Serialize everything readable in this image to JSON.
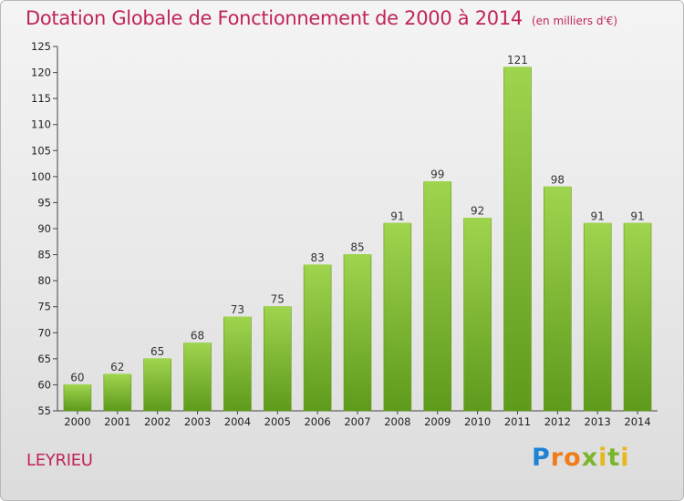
{
  "header": {
    "title": "Dotation Globale de Fonctionnement de 2000 à 2014",
    "subtitle": "(en milliers d'€)"
  },
  "footer": {
    "commune": "LEYRIEU",
    "logo": "Proxiti"
  },
  "colors": {
    "accent": "#c0245c",
    "bar_light": "#9fd44e",
    "bar_dark": "#5e9a1c"
  },
  "chart_data": {
    "type": "bar",
    "title": "Dotation Globale de Fonctionnement de 2000 à 2014",
    "subtitle": "(en milliers d'€)",
    "xlabel": "",
    "ylabel": "",
    "ylim": [
      55,
      125
    ],
    "ytick_step": 5,
    "grid": false,
    "categories": [
      "2000",
      "2001",
      "2002",
      "2003",
      "2004",
      "2005",
      "2006",
      "2007",
      "2008",
      "2009",
      "2010",
      "2011",
      "2012",
      "2013",
      "2014"
    ],
    "values": [
      60,
      62,
      65,
      68,
      73,
      75,
      83,
      85,
      91,
      99,
      92,
      121,
      98,
      91,
      91
    ]
  }
}
